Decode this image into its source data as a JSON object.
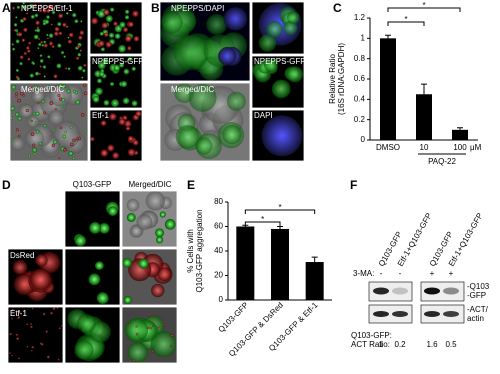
{
  "panel_labels": [
    "A",
    "B",
    "C",
    "D",
    "E",
    "F"
  ],
  "panel_a": {
    "main_top": "NPEPPS/Etf-1",
    "main_bottom": "Merged/DIC",
    "side_middle": "NPEPPS-GFP",
    "side_bottom": "Etf-1"
  },
  "panel_b": {
    "main_top": "NPEPPS/DAPI",
    "main_bottom": "Merged/DIC",
    "side_middle": "NPEPPS-GFP",
    "side_bottom": "DAPI"
  },
  "panel_d": {
    "columns": [
      "Q103-GFP",
      "Merged/DIC"
    ],
    "rows": [
      "DsRed",
      "Etf-1"
    ]
  },
  "chart_data": [
    {
      "type": "bar",
      "ylabel": [
        "Relative Ratio",
        "(16S rDNA:GAPDH)"
      ],
      "categories": [
        "DMSO",
        "10",
        "100"
      ],
      "xlabel": "PAQ-22",
      "unit": "μM",
      "values": [
        1.0,
        0.45,
        0.1
      ],
      "errors": [
        0.03,
        0.1,
        0.02
      ],
      "color": "#000000",
      "ylim": [
        0,
        1.2
      ],
      "yticks": [
        0,
        0.2,
        0.4,
        0.6,
        0.8,
        1,
        1.2
      ],
      "annotations": [
        "*",
        "*"
      ]
    },
    {
      "type": "bar",
      "ylabel": [
        "% Cells with",
        "Q103-GFP aggregation"
      ],
      "categories": [
        "Q103-GFP",
        "Q103-GFP & DsRed",
        "Q103-GFP & Etf-1"
      ],
      "values": [
        60,
        58,
        31
      ],
      "errors": [
        1,
        2,
        4
      ],
      "color": "#000000",
      "ylim": [
        0,
        80
      ],
      "yticks": [
        0,
        20,
        40,
        60,
        80
      ],
      "annotations": [
        "*",
        "*"
      ]
    }
  ],
  "panel_f": {
    "columns": [
      "Q103-GFP",
      "Etf-1+Q103-GFP",
      "Q103-GFP",
      "Etf-1+Q103-GFP"
    ],
    "treatment_label": "3-MA:",
    "treatment": [
      "-",
      "-",
      "+",
      "+"
    ],
    "bands": [
      [
        "-Q103",
        "-GFP"
      ],
      [
        "-ACT/",
        "actin"
      ]
    ],
    "ratio_label": [
      "Q103-GFP:",
      "ACT Ratio:"
    ],
    "ratios": [
      1,
      0.2,
      1.6,
      0.5
    ]
  }
}
